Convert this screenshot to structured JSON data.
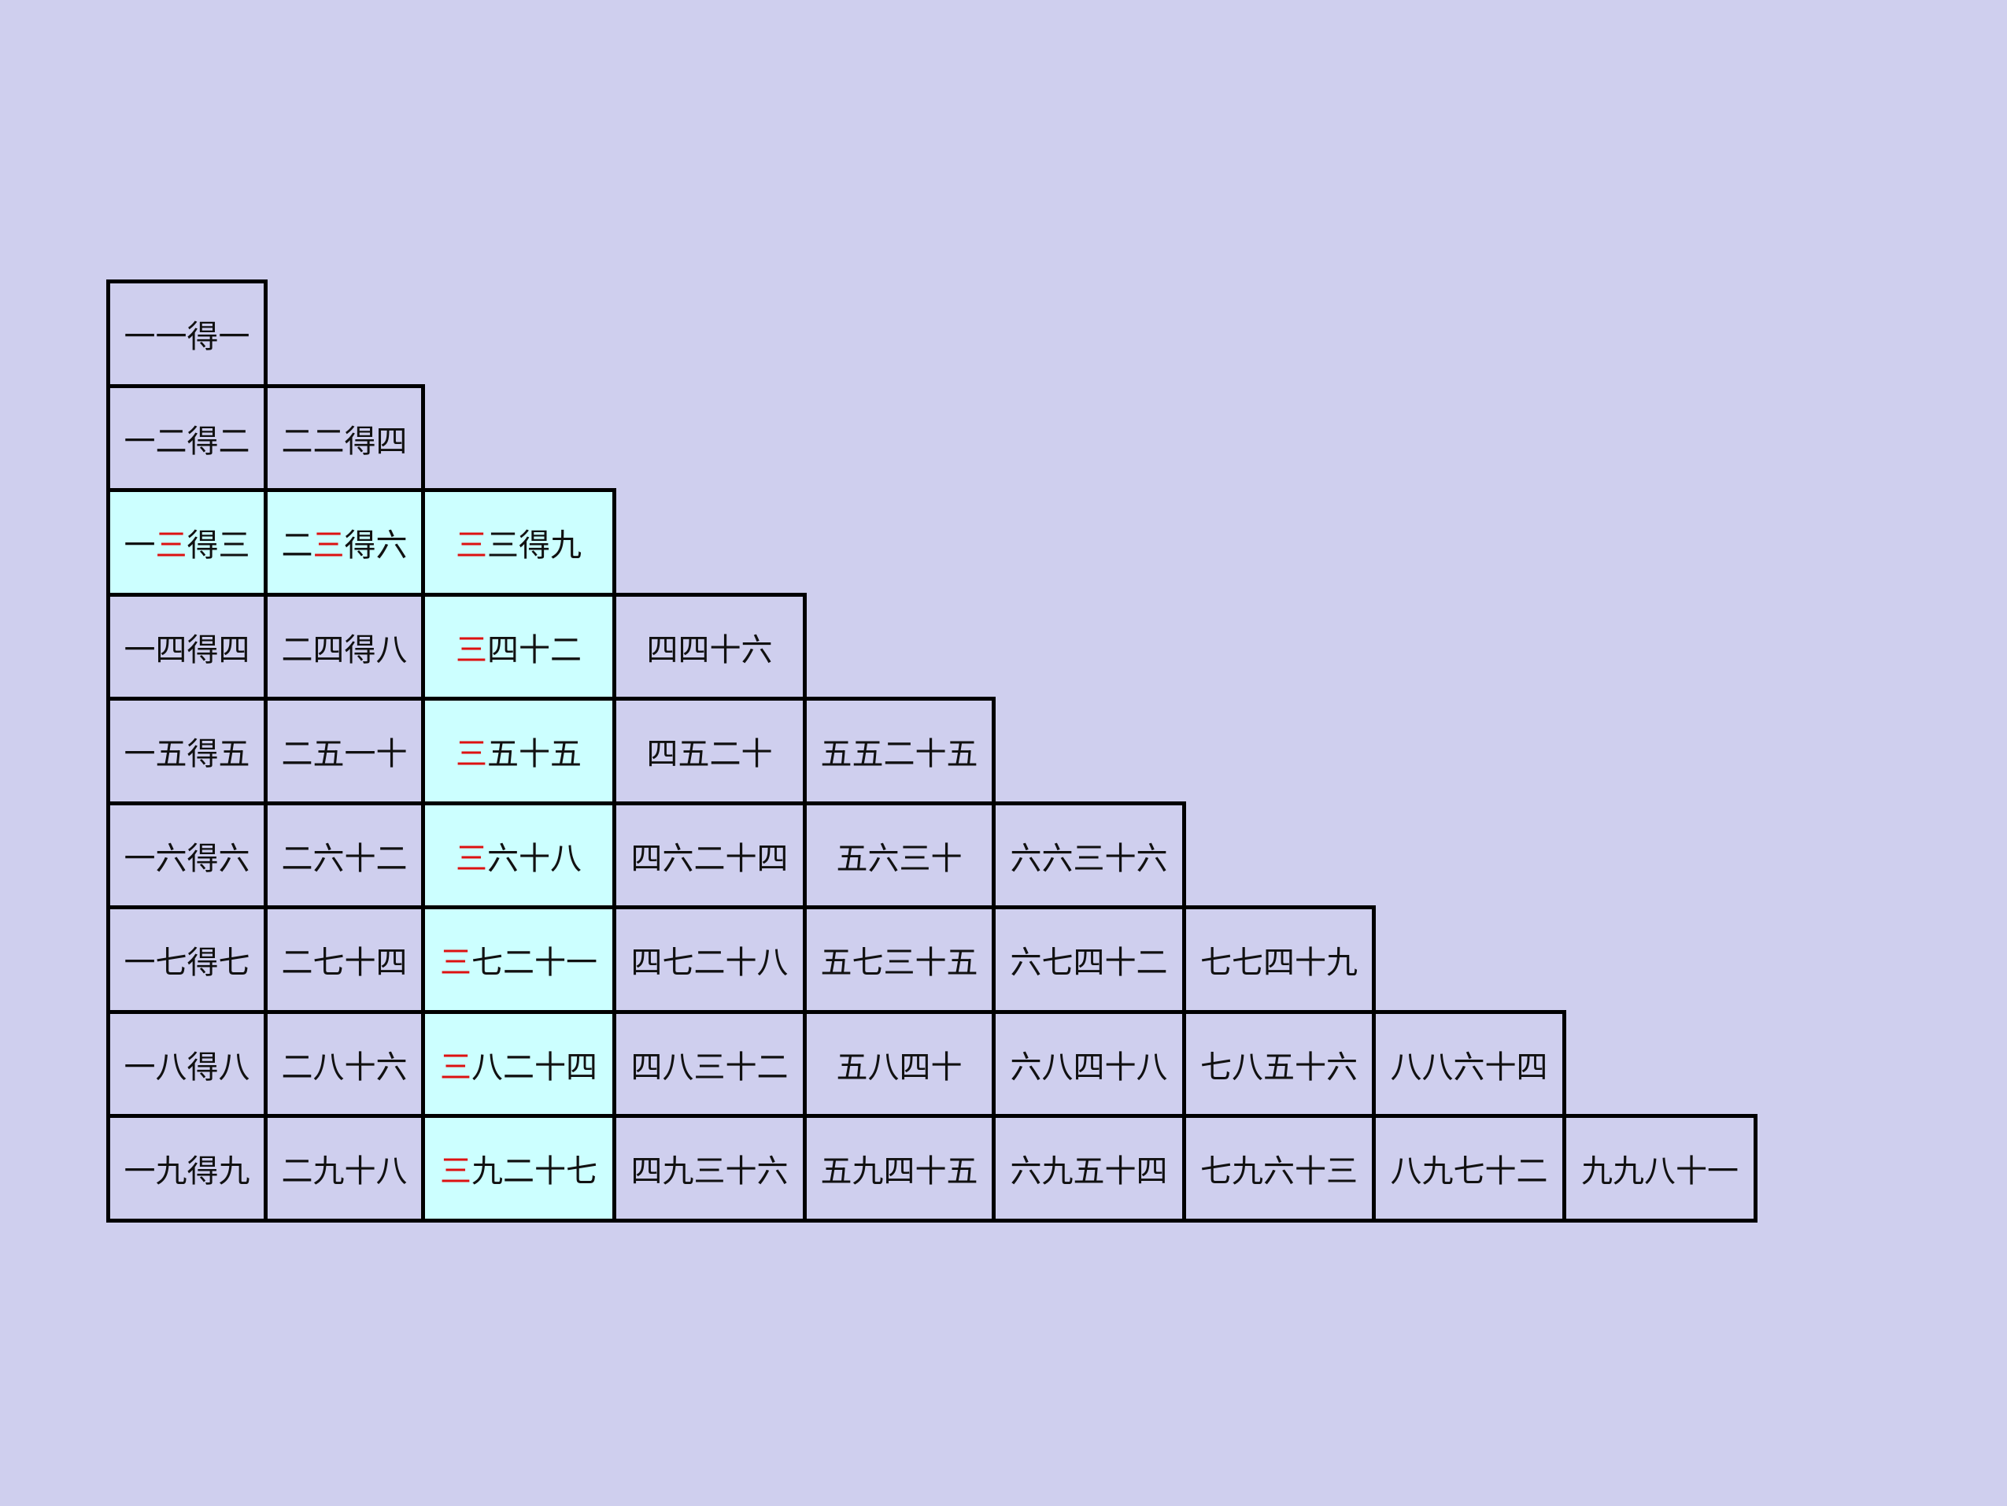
{
  "colors": {
    "background": "#cfcfee",
    "highlight_fill": "#ccffff",
    "highlight_text": "#dd1111",
    "border": "#000000"
  },
  "table": {
    "highlight_char": "三",
    "rows": [
      [
        "一一得一"
      ],
      [
        "一二得二",
        "二二得四"
      ],
      [
        "一三得三",
        "二三得六",
        "三三得九"
      ],
      [
        "一四得四",
        "二四得八",
        "三四十二",
        "四四十六"
      ],
      [
        "一五得五",
        "二五一十",
        "三五十五",
        "四五二十",
        "五五二十五"
      ],
      [
        "一六得六",
        "二六十二",
        "三六十八",
        "四六二十四",
        "五六三十",
        "六六三十六"
      ],
      [
        "一七得七",
        "二七十四",
        "三七二十一",
        "四七二十八",
        "五七三十五",
        "六七四十二",
        "七七四十九"
      ],
      [
        "一八得八",
        "二八十六",
        "三八二十四",
        "四八三十二",
        "五八四十",
        "六八四十八",
        "七八五十六",
        "八八六十四"
      ],
      [
        "一九得九",
        "二九十八",
        "三九二十七",
        "四九三十六",
        "五九四十五",
        "六九五十四",
        "七九六十三",
        "八九七十二",
        "九九八十一"
      ]
    ],
    "highlighted_row": 2,
    "highlighted_column": 2
  }
}
